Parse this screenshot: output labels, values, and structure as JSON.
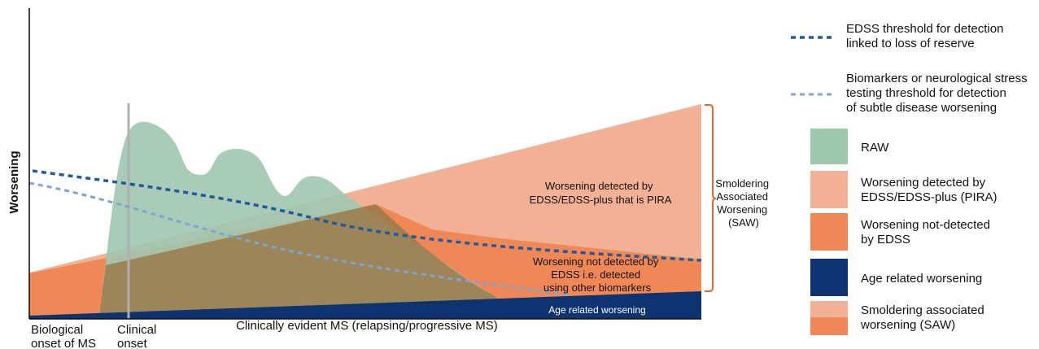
{
  "colors": {
    "raw": "#9ec7b0",
    "pira": "#f2b094",
    "not_detected": "#ef8756",
    "age": "#0d3370",
    "edss_line": "#1f5b9c",
    "biomarker_line": "#7fa4cf",
    "bracket": "#e4692f",
    "onset_line": "#b0b0b0"
  },
  "axes": {
    "ylabel": "Worsening",
    "x_biological": [
      "Biological",
      "onset of MS"
    ],
    "x_clinical": [
      "Clinical",
      "onset"
    ],
    "x_clinically_evident": "Clinically evident MS (relapsing/progressive MS)"
  },
  "annotations": {
    "pira": [
      "Worsening detected by",
      "EDSS/EDSS-plus that is PIRA"
    ],
    "not_detected": [
      "Worsening not detected by",
      "EDSS i.e. detected",
      "using other biomarkers"
    ],
    "age": "Age related worsening",
    "saw_bracket": [
      "Smoldering",
      "Associated",
      "Worsening",
      "(SAW)"
    ]
  },
  "legend": {
    "edss_threshold": [
      "EDSS threshold for detection",
      "linked to loss of reserve"
    ],
    "biomarker_threshold": [
      "Biomarkers or neurological stress",
      "testing threshold for detection",
      "of subtle disease worsening"
    ],
    "raw": "RAW",
    "pira": [
      "Worsening detected by",
      "EDSS/EDSS-plus (PIRA)"
    ],
    "not_detected": [
      "Worsening not-detected",
      "by EDSS"
    ],
    "age": "Age related worsening",
    "saw": [
      "Smoldering associated",
      "worsening (SAW)"
    ]
  }
}
